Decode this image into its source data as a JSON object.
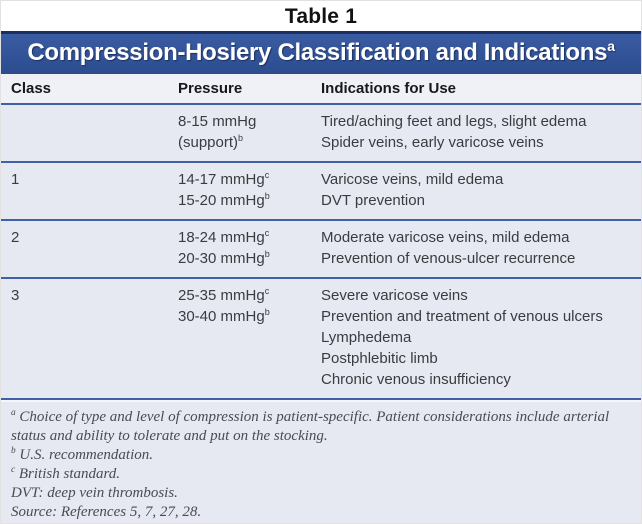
{
  "figure": {
    "title": "Table 1"
  },
  "banner": {
    "title": "Compression-Hosiery Classification and Indications",
    "footnote_marker": "a"
  },
  "table": {
    "columns": [
      "Class",
      "Pressure",
      "Indications for Use"
    ],
    "rows": [
      {
        "class": "",
        "pressure": [
          {
            "text": "8-15 mmHg",
            "sup": ""
          },
          {
            "text": "(support)",
            "sup": "b"
          }
        ],
        "indications": [
          "Tired/aching feet and legs, slight edema",
          "Spider veins, early varicose veins"
        ]
      },
      {
        "class": "1",
        "pressure": [
          {
            "text": "14-17 mmHg",
            "sup": "c"
          },
          {
            "text": "15-20 mmHg",
            "sup": "b"
          }
        ],
        "indications": [
          "Varicose veins, mild edema",
          "DVT prevention"
        ]
      },
      {
        "class": "2",
        "pressure": [
          {
            "text": "18-24 mmHg",
            "sup": "c"
          },
          {
            "text": "20-30 mmHg",
            "sup": "b"
          }
        ],
        "indications": [
          "Moderate varicose veins, mild edema",
          "Prevention of venous-ulcer recurrence"
        ]
      },
      {
        "class": "3",
        "pressure": [
          {
            "text": "25-35 mmHg",
            "sup": "c"
          },
          {
            "text": "30-40 mmHg",
            "sup": "b"
          }
        ],
        "indications": [
          "Severe varicose veins",
          "Prevention and treatment of venous ulcers",
          "Lymphedema",
          "Postphlebitic limb",
          "Chronic venous insufficiency"
        ]
      }
    ]
  },
  "footnotes": [
    {
      "sup": "a",
      "text": "Choice of type and level of compression is patient-specific. Patient considerations include arterial status and ability to tolerate and put on the stocking."
    },
    {
      "sup": "b",
      "text": "U.S. recommendation."
    },
    {
      "sup": "c",
      "text": "British standard."
    },
    {
      "sup": "",
      "text": "DVT: deep vein thrombosis."
    },
    {
      "sup": "",
      "text": "Source: References 5, 7, 27, 28."
    }
  ],
  "colors": {
    "banner_bg": "#2e5094",
    "banner_top_border": "#1c2f5e",
    "banner_text": "#ffffff",
    "header_row_bg": "#eff1f6",
    "body_bg": "#e6e9f1",
    "separator": "#4161a6",
    "header_text": "#17171c",
    "body_text": "#3b3b40",
    "footnote_text": "#4a4a52",
    "title_text": "#121212"
  }
}
